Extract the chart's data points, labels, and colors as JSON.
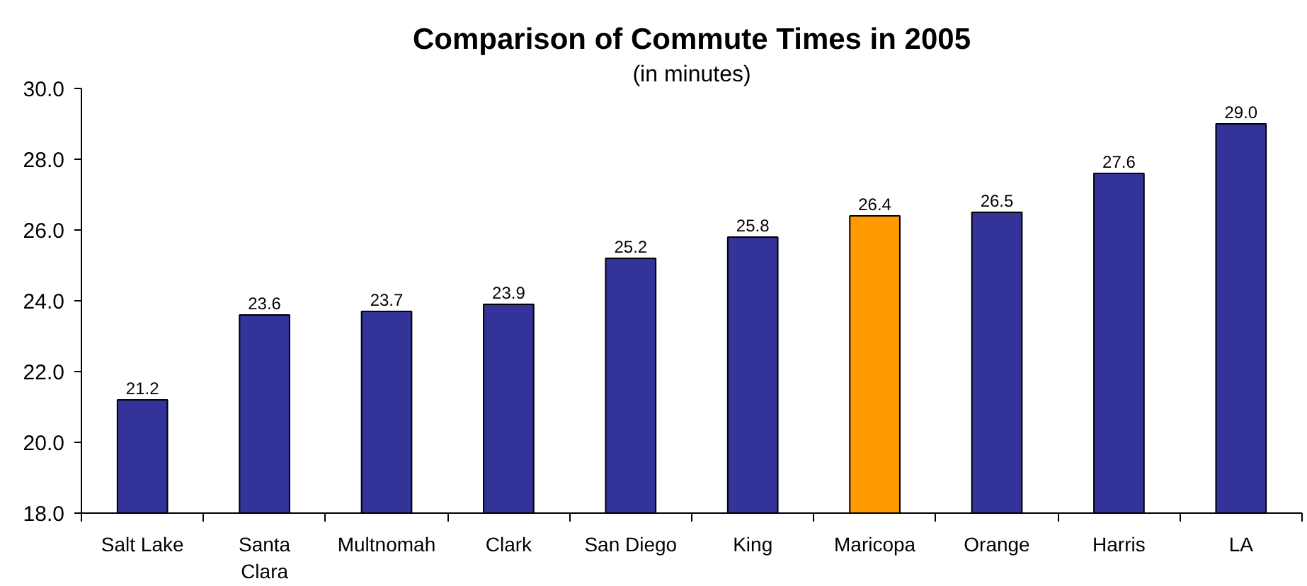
{
  "chart_data": {
    "type": "bar",
    "title": "Comparison of Commute Times in 2005",
    "subtitle": "(in minutes)",
    "categories": [
      "Salt Lake",
      "Santa Clara",
      "Multnomah",
      "Clark",
      "San Diego",
      "King",
      "Maricopa",
      "Orange",
      "Harris",
      "LA"
    ],
    "values": [
      21.2,
      23.6,
      23.7,
      23.9,
      25.2,
      25.8,
      26.4,
      26.5,
      27.6,
      29.0
    ],
    "value_labels": [
      "21.2",
      "23.6",
      "23.7",
      "23.9",
      "25.2",
      "25.8",
      "26.4",
      "26.5",
      "27.6",
      "29.0"
    ],
    "colors": [
      "#333399",
      "#333399",
      "#333399",
      "#333399",
      "#333399",
      "#333399",
      "#ff9900",
      "#333399",
      "#333399",
      "#333399"
    ],
    "ylim": [
      18,
      30
    ],
    "yticks": [
      {
        "value": 18,
        "label": "18.0"
      },
      {
        "value": 20,
        "label": "20.0"
      },
      {
        "value": 22,
        "label": "22.0"
      },
      {
        "value": 24,
        "label": "24.0"
      },
      {
        "value": 26,
        "label": "26.0"
      },
      {
        "value": 28,
        "label": "28.0"
      },
      {
        "value": 30,
        "label": "30.0"
      }
    ],
    "grid": false
  }
}
